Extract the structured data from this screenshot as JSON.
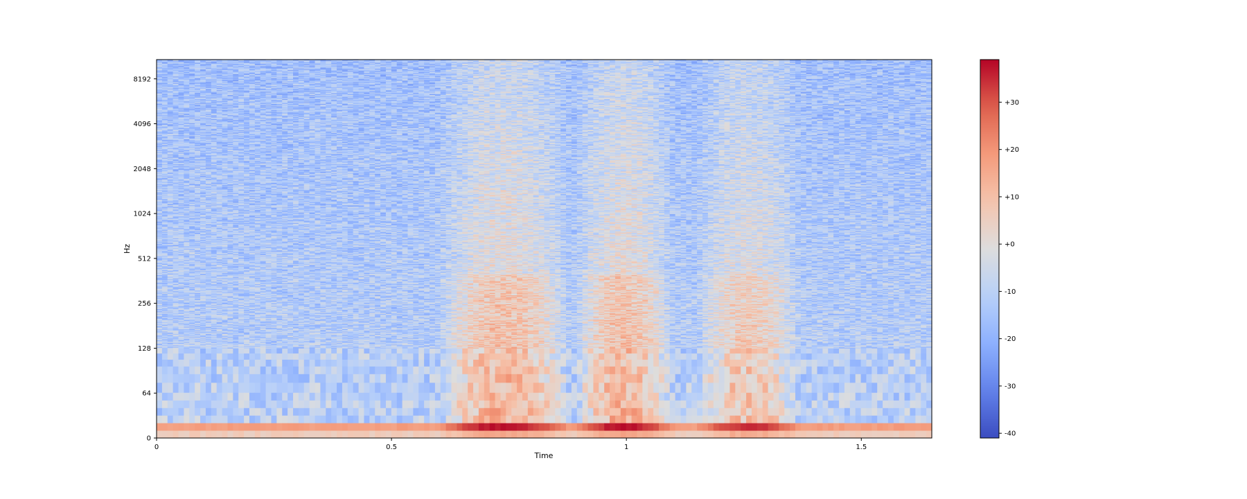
{
  "chart_data": {
    "type": "heatmap",
    "subtype": "spectrogram",
    "title": "",
    "xlabel": "Time",
    "ylabel": "Hz",
    "x_scale": "linear",
    "y_scale": "symlog",
    "xlim": [
      0,
      1.65
    ],
    "ylim": [
      0,
      11025
    ],
    "x_ticks": [
      0,
      0.5,
      1,
      1.5
    ],
    "x_tick_labels": [
      "0",
      "0.5",
      "1",
      "1.5"
    ],
    "y_ticks": [
      0,
      64,
      128,
      256,
      512,
      1024,
      2048,
      4096,
      8192
    ],
    "y_tick_labels": [
      "0",
      "64",
      "128",
      "256",
      "512",
      "1024",
      "2048",
      "4096",
      "8192"
    ],
    "colormap": "coolwarm",
    "colorbar": {
      "range": [
        -41,
        39
      ],
      "ticks": [
        -40,
        -30,
        -20,
        -10,
        0,
        10,
        20,
        30
      ],
      "tick_labels": [
        "-40",
        "-30",
        "-20",
        "-10",
        "+0",
        "+10",
        "+20",
        "+30"
      ]
    },
    "grid": false,
    "energy_segments": [
      {
        "t_start": 0.63,
        "t_end": 0.85,
        "peak_db": 38
      },
      {
        "t_start": 0.92,
        "t_end": 1.07,
        "peak_db": 38
      },
      {
        "t_start": 1.18,
        "t_end": 1.34,
        "peak_db": 32
      }
    ],
    "background_db": -10
  }
}
